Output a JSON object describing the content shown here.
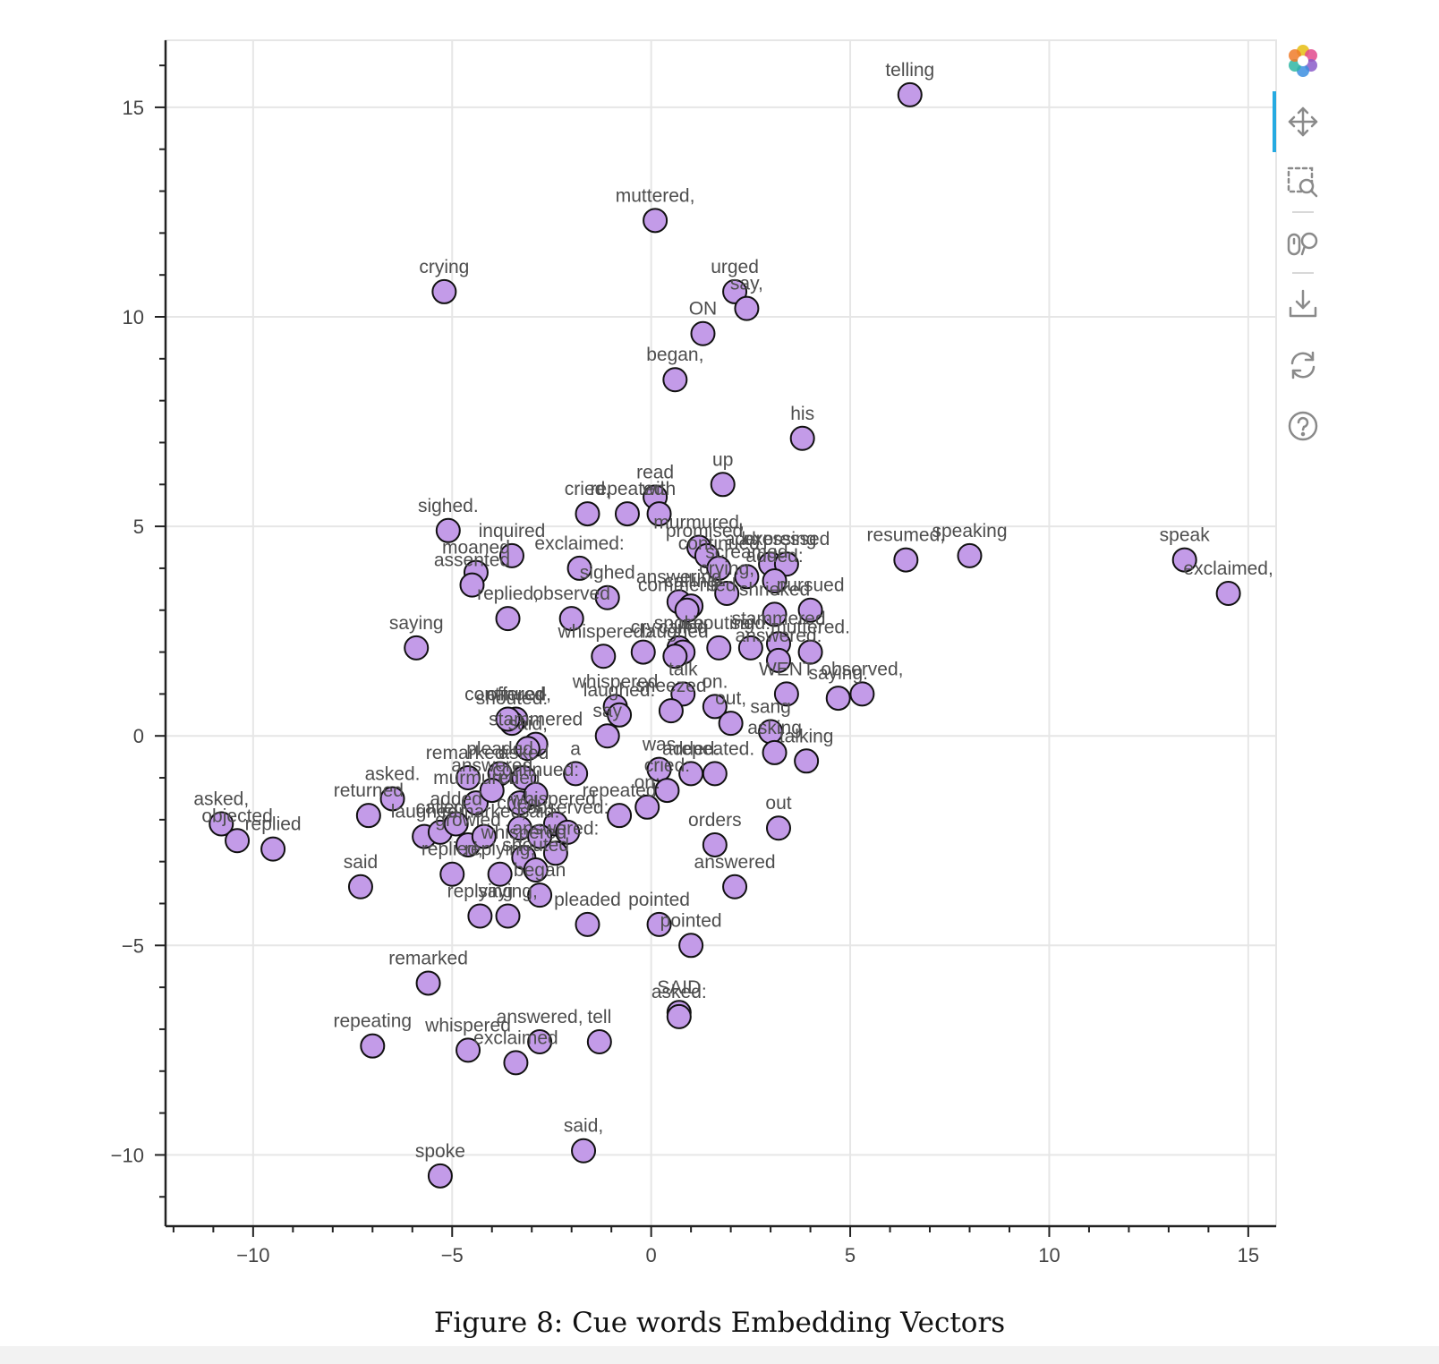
{
  "caption": "Figure 8: Cue words Embedding Vectors",
  "toolbar": {
    "tools": [
      {
        "name": "bokeh-logo-icon",
        "label": ""
      },
      {
        "name": "pan-icon",
        "label": ""
      },
      {
        "name": "box-zoom-icon",
        "label": ""
      },
      {
        "name": "wheel-zoom-icon",
        "label": ""
      },
      {
        "name": "save-icon",
        "label": ""
      },
      {
        "name": "reset-icon",
        "label": ""
      },
      {
        "name": "help-icon",
        "label": ""
      }
    ]
  },
  "colors": {
    "point_fill": "#c39be8",
    "point_stroke": "#111111",
    "grid": "#e6e6e6",
    "axis": "#222222",
    "toolbar_icon": "#8a8a8a",
    "toolbar_active": "#26aae1"
  },
  "chart_data": {
    "type": "scatter",
    "title": "",
    "xlabel": "",
    "ylabel": "",
    "xlim": [
      -12.2,
      15.7
    ],
    "ylim": [
      -11.7,
      16.6
    ],
    "x_ticks": [
      -10,
      -5,
      0,
      5,
      10,
      15
    ],
    "y_ticks": [
      -10,
      -5,
      0,
      5,
      10,
      15
    ],
    "x_tick_labels": [
      "−10",
      "−5",
      "0",
      "5",
      "10",
      "15"
    ],
    "y_tick_labels": [
      "−10",
      "−5",
      "0",
      "5",
      "10",
      "15"
    ],
    "grid": true,
    "points": [
      {
        "label": "telling",
        "x": 6.5,
        "y": 15.3
      },
      {
        "label": "muttered,",
        "x": 0.1,
        "y": 12.3
      },
      {
        "label": "crying",
        "x": -5.2,
        "y": 10.6
      },
      {
        "label": "urged",
        "x": 2.1,
        "y": 10.6
      },
      {
        "label": "say,",
        "x": 2.4,
        "y": 10.2
      },
      {
        "label": "ON",
        "x": 1.3,
        "y": 9.6
      },
      {
        "label": "began,",
        "x": 0.6,
        "y": 8.5
      },
      {
        "label": "his",
        "x": 3.8,
        "y": 7.1
      },
      {
        "label": "up",
        "x": 1.8,
        "y": 6.0
      },
      {
        "label": "read",
        "x": 0.1,
        "y": 5.7
      },
      {
        "label": "cried,",
        "x": -1.6,
        "y": 5.3
      },
      {
        "label": "repeated",
        "x": -0.6,
        "y": 5.3
      },
      {
        "label": "with",
        "x": 0.2,
        "y": 5.3
      },
      {
        "label": "sighed.",
        "x": -5.1,
        "y": 4.9
      },
      {
        "label": "inquired",
        "x": -3.5,
        "y": 4.3
      },
      {
        "label": "moaned",
        "x": -4.4,
        "y": 3.9
      },
      {
        "label": "assented",
        "x": -4.5,
        "y": 3.6
      },
      {
        "label": "exclaimed:",
        "x": -1.8,
        "y": 4.0
      },
      {
        "label": "murmured,",
        "x": 1.2,
        "y": 4.5
      },
      {
        "label": "promised,",
        "x": 1.4,
        "y": 4.3
      },
      {
        "label": "addressing",
        "x": 3.0,
        "y": 4.1
      },
      {
        "label": "expressed",
        "x": 3.4,
        "y": 4.1
      },
      {
        "label": "continued",
        "x": 1.7,
        "y": 4.0
      },
      {
        "label": "screamed",
        "x": 2.4,
        "y": 3.8
      },
      {
        "label": "resumed,",
        "x": 6.4,
        "y": 4.2
      },
      {
        "label": "speaking",
        "x": 8.0,
        "y": 4.3
      },
      {
        "label": "speak",
        "x": 13.4,
        "y": 4.2
      },
      {
        "label": "exclaimed,",
        "x": 14.5,
        "y": 3.4
      },
      {
        "label": "sighed",
        "x": -1.1,
        "y": 3.3
      },
      {
        "label": "answering",
        "x": 0.7,
        "y": 3.2
      },
      {
        "label": "calling",
        "x": 1.0,
        "y": 3.1
      },
      {
        "label": "commented",
        "x": 0.9,
        "y": 3.0
      },
      {
        "label": "added:",
        "x": 3.1,
        "y": 3.7
      },
      {
        "label": "pursued",
        "x": 4.0,
        "y": 3.0
      },
      {
        "label": "crying,",
        "x": 1.9,
        "y": 3.4
      },
      {
        "label": "replied,",
        "x": -3.6,
        "y": 2.8
      },
      {
        "label": "observed",
        "x": -2.0,
        "y": 2.8
      },
      {
        "label": "saying",
        "x": -5.9,
        "y": 2.1
      },
      {
        "label": "shrieked",
        "x": 3.1,
        "y": 2.9
      },
      {
        "label": "stammered",
        "x": 3.2,
        "y": 2.2
      },
      {
        "label": "muttered.",
        "x": 4.0,
        "y": 2.0
      },
      {
        "label": "whispered:",
        "x": -1.2,
        "y": 1.9
      },
      {
        "label": "cry",
        "x": -0.2,
        "y": 2.0
      },
      {
        "label": "spoke",
        "x": 0.7,
        "y": 2.1
      },
      {
        "label": "called",
        "x": 0.8,
        "y": 2.0
      },
      {
        "label": "laughed",
        "x": 0.6,
        "y": 1.9
      },
      {
        "label": "shouting",
        "x": 1.7,
        "y": 2.1
      },
      {
        "label": "said:",
        "x": 2.5,
        "y": 2.1
      },
      {
        "label": "answered:",
        "x": 3.2,
        "y": 1.8
      },
      {
        "label": "observed,",
        "x": 5.3,
        "y": 1.0
      },
      {
        "label": "saying.",
        "x": 4.7,
        "y": 0.9
      },
      {
        "label": "talk",
        "x": 0.8,
        "y": 1.0
      },
      {
        "label": "whispered",
        "x": -0.9,
        "y": 0.7
      },
      {
        "label": "laughed.",
        "x": -0.8,
        "y": 0.5
      },
      {
        "label": "sneezed",
        "x": 0.5,
        "y": 0.6
      },
      {
        "label": "on.",
        "x": 1.6,
        "y": 0.7
      },
      {
        "label": "out,",
        "x": 2.0,
        "y": 0.3
      },
      {
        "label": "WENT",
        "x": 3.4,
        "y": 1.0
      },
      {
        "label": "offered",
        "x": -3.4,
        "y": 0.4
      },
      {
        "label": "shouted:",
        "x": -3.5,
        "y": 0.3
      },
      {
        "label": "continued,",
        "x": -3.6,
        "y": 0.4
      },
      {
        "label": "say",
        "x": -1.1,
        "y": 0.0
      },
      {
        "label": "sang",
        "x": 3.0,
        "y": 0.1
      },
      {
        "label": "asking",
        "x": 3.1,
        "y": -0.4
      },
      {
        "label": "talking",
        "x": 3.9,
        "y": -0.6
      },
      {
        "label": "stammered",
        "x": -2.9,
        "y": -0.2
      },
      {
        "label": "was",
        "x": 0.2,
        "y": -0.8
      },
      {
        "label": "repeated.",
        "x": 1.6,
        "y": -0.9
      },
      {
        "label": "added.",
        "x": 1.0,
        "y": -0.9
      },
      {
        "label": "remarked:",
        "x": -4.6,
        "y": -1.0
      },
      {
        "label": "said,",
        "x": -3.1,
        "y": -0.3
      },
      {
        "label": "pleaded",
        "x": -3.8,
        "y": -0.9
      },
      {
        "label": "asked",
        "x": -3.2,
        "y": -1.0
      },
      {
        "label": "a",
        "x": -1.9,
        "y": -0.9
      },
      {
        "label": "asked.",
        "x": -6.5,
        "y": -1.5
      },
      {
        "label": "asked,",
        "x": -10.8,
        "y": -2.1
      },
      {
        "label": "objected",
        "x": -10.4,
        "y": -2.5
      },
      {
        "label": "replied",
        "x": -9.5,
        "y": -2.7
      },
      {
        "label": "returned",
        "x": -7.1,
        "y": -1.9
      },
      {
        "label": "murmured",
        "x": -4.4,
        "y": -1.6
      },
      {
        "label": "answered",
        "x": -4.0,
        "y": -1.3
      },
      {
        "label": "cried",
        "x": -3.3,
        "y": -1.6
      },
      {
        "label": "continued:",
        "x": -2.9,
        "y": -1.4
      },
      {
        "label": "whispered,",
        "x": -2.4,
        "y": -2.1
      },
      {
        "label": "cried:",
        "x": 0.4,
        "y": -1.3
      },
      {
        "label": "repeated",
        "x": -0.8,
        "y": -1.9
      },
      {
        "label": "on:",
        "x": -0.1,
        "y": -1.7
      },
      {
        "label": "orders",
        "x": 1.6,
        "y": -2.6
      },
      {
        "label": "out",
        "x": 3.2,
        "y": -2.2
      },
      {
        "label": "laughed",
        "x": -5.7,
        "y": -2.4
      },
      {
        "label": "called",
        "x": -5.3,
        "y": -2.3
      },
      {
        "label": "added",
        "x": -4.9,
        "y": -2.1
      },
      {
        "label": "growled",
        "x": -4.6,
        "y": -2.6
      },
      {
        "label": "remarked,",
        "x": -4.2,
        "y": -2.4
      },
      {
        "label": "cried,",
        "x": -3.3,
        "y": -2.2
      },
      {
        "label": "said:",
        "x": -2.8,
        "y": -2.4
      },
      {
        "label": "observed:",
        "x": -2.1,
        "y": -2.3
      },
      {
        "label": "whispered",
        "x": -3.2,
        "y": -2.9
      },
      {
        "label": "answered:",
        "x": -2.4,
        "y": -2.8
      },
      {
        "label": "answered",
        "x": 2.1,
        "y": -3.6
      },
      {
        "label": "said",
        "x": -7.3,
        "y": -3.6
      },
      {
        "label": "replied,",
        "x": -5.0,
        "y": -3.3
      },
      {
        "label": "shouted",
        "x": -2.9,
        "y": -3.2
      },
      {
        "label": "replying,",
        "x": -3.8,
        "y": -3.3
      },
      {
        "label": "replying",
        "x": -4.3,
        "y": -4.3
      },
      {
        "label": "saying,",
        "x": -3.6,
        "y": -4.3
      },
      {
        "label": "began",
        "x": -2.8,
        "y": -3.8
      },
      {
        "label": "pleaded",
        "x": -1.6,
        "y": -4.5
      },
      {
        "label": "pointed",
        "x": 0.2,
        "y": -4.5
      },
      {
        "label": "pointed",
        "x": 1.0,
        "y": -5.0
      },
      {
        "label": "remarked",
        "x": -5.6,
        "y": -5.9
      },
      {
        "label": "SAID",
        "x": 0.7,
        "y": -6.6
      },
      {
        "label": "asked:",
        "x": 0.7,
        "y": -6.7
      },
      {
        "label": "repeating",
        "x": -7.0,
        "y": -7.4
      },
      {
        "label": "whispered",
        "x": -4.6,
        "y": -7.5
      },
      {
        "label": "answered,",
        "x": -2.8,
        "y": -7.3
      },
      {
        "label": "tell",
        "x": -1.3,
        "y": -7.3
      },
      {
        "label": "exclaimed",
        "x": -3.4,
        "y": -7.8
      },
      {
        "label": "said,",
        "x": -1.7,
        "y": -9.9
      },
      {
        "label": "spoke",
        "x": -5.3,
        "y": -10.5
      }
    ]
  }
}
